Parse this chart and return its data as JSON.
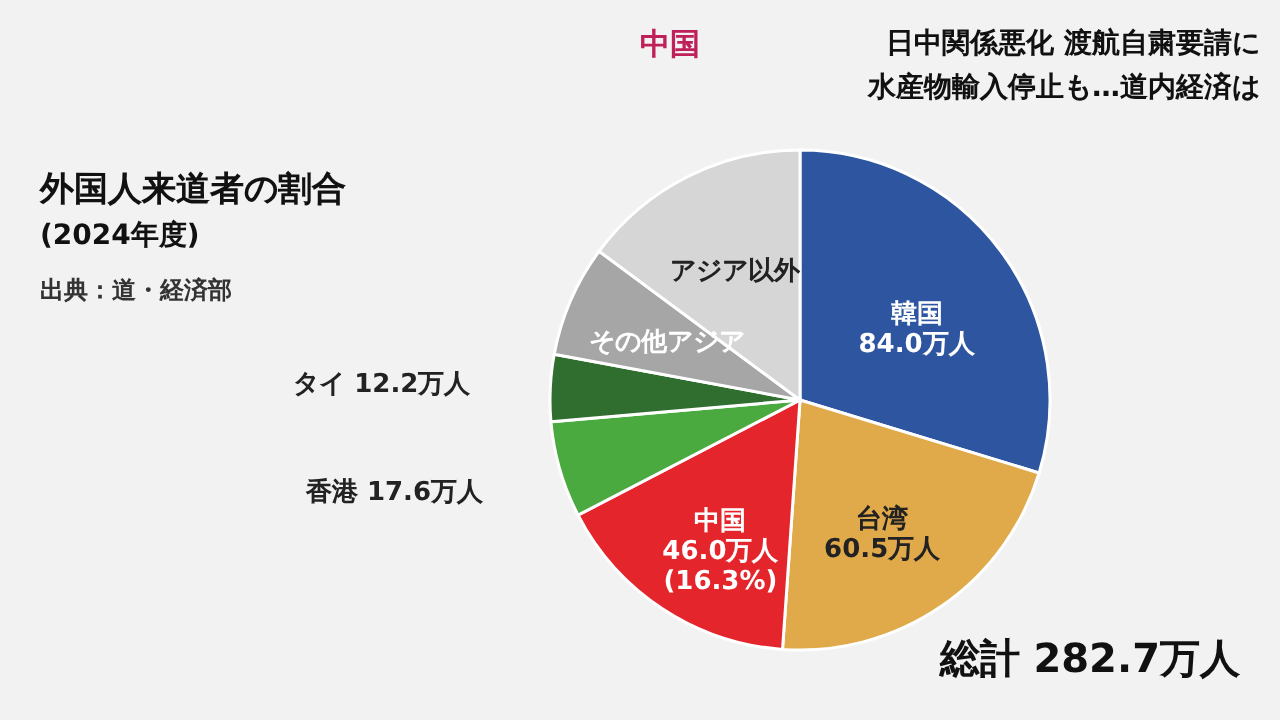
{
  "chart_data": {
    "type": "pie",
    "title": "外国人来道者の割合",
    "subtitle": "(2024年度)",
    "categories": [
      "韓国",
      "台湾",
      "中国",
      "香港",
      "タイ",
      "その他アジア",
      "アジア以外"
    ],
    "values": [
      84.0,
      60.5,
      46.0,
      17.6,
      12.2,
      20.4,
      42.0
    ],
    "colors": [
      "#2e55a0",
      "#e0aa4a",
      "#e4262c",
      "#4aaa3f",
      "#2f6e2f",
      "#a6a6a6",
      "#d6d6d6"
    ],
    "value_labels": [
      "84.0万人",
      "60.5万人",
      "46.0万人 (16.3%)",
      "17.6万人",
      "12.2万人",
      null,
      null
    ],
    "annotations": [
      "出典：道・経済部",
      "総計 282.7万人",
      "中国",
      "日中関係悪化 渡航自粛要請に",
      "水産物輸入停止も…道内経済は"
    ],
    "legend": false
  }
}
